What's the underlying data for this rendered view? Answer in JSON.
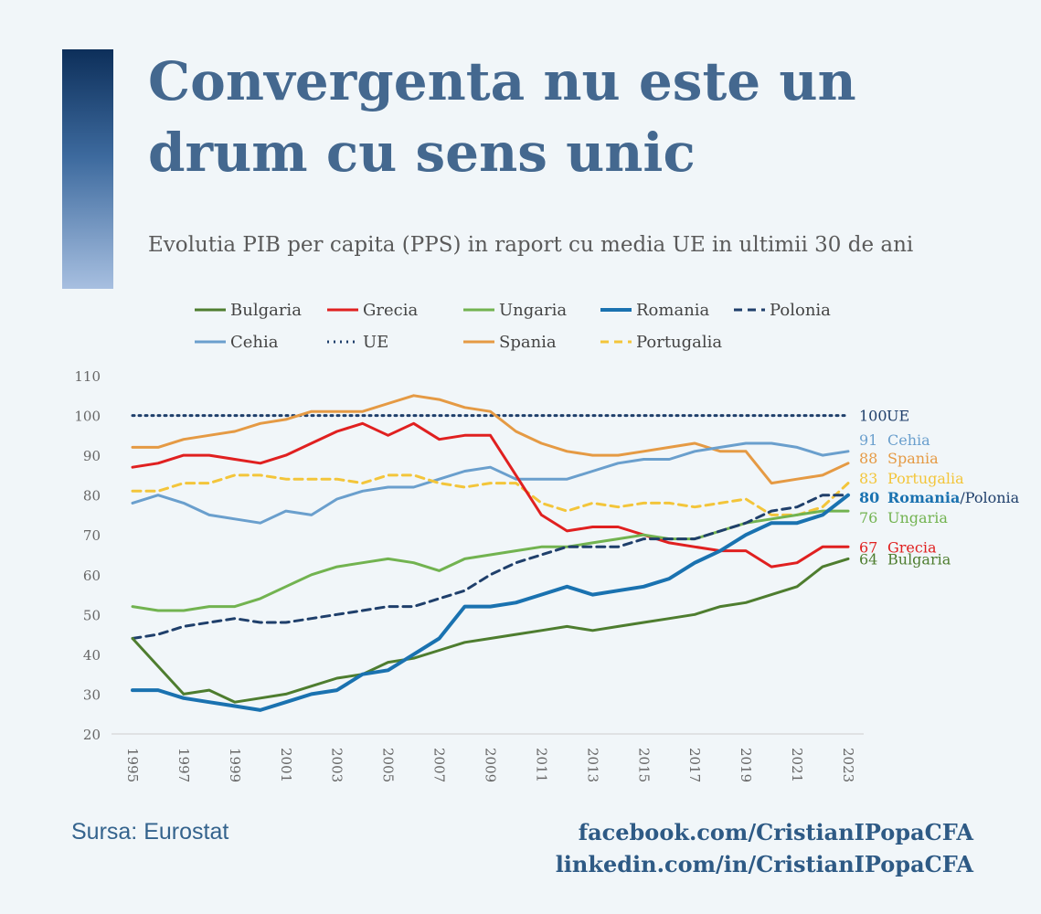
{
  "header": {
    "title": "Convergenta nu este un drum cu sens unic",
    "subtitle": "Evolutia PIB per capita (PPS) in raport cu media UE in ultimii 30 de ani"
  },
  "footer": {
    "source": "Sursa: Eurostat",
    "facebook": "facebook.com/CristianIPopaCFA",
    "linkedin": "linkedin.com/in/CristianIPopaCFA"
  },
  "chart_data": {
    "type": "line",
    "title": "",
    "xlabel": "",
    "ylabel": "",
    "ylim": [
      20,
      110
    ],
    "yticks": [
      20,
      30,
      40,
      50,
      60,
      70,
      80,
      90,
      100,
      110
    ],
    "x": [
      1995,
      1996,
      1997,
      1998,
      1999,
      2000,
      2001,
      2002,
      2003,
      2004,
      2005,
      2006,
      2007,
      2008,
      2009,
      2010,
      2011,
      2012,
      2013,
      2014,
      2015,
      2016,
      2017,
      2018,
      2019,
      2020,
      2021,
      2022,
      2023
    ],
    "xticks": [
      1995,
      1997,
      1999,
      2001,
      2003,
      2005,
      2007,
      2009,
      2011,
      2013,
      2015,
      2017,
      2019,
      2021,
      2023
    ],
    "legend_position": "top",
    "series": [
      {
        "name": "Bulgaria",
        "color": "#4e7d2f",
        "dash": "solid",
        "width": 3,
        "values": [
          44,
          37,
          30,
          31,
          28,
          29,
          30,
          32,
          34,
          35,
          38,
          39,
          41,
          43,
          44,
          45,
          46,
          47,
          46,
          47,
          48,
          49,
          50,
          52,
          53,
          55,
          57,
          62,
          64
        ]
      },
      {
        "name": "Grecia",
        "color": "#e02020",
        "dash": "solid",
        "width": 3,
        "values": [
          87,
          88,
          90,
          90,
          89,
          88,
          90,
          93,
          96,
          98,
          95,
          98,
          94,
          95,
          95,
          85,
          75,
          71,
          72,
          72,
          70,
          68,
          67,
          66,
          66,
          62,
          63,
          67,
          67
        ]
      },
      {
        "name": "Ungaria",
        "color": "#72b350",
        "dash": "solid",
        "width": 3,
        "values": [
          52,
          51,
          51,
          52,
          52,
          54,
          57,
          60,
          62,
          63,
          64,
          63,
          61,
          64,
          65,
          66,
          67,
          67,
          68,
          69,
          70,
          69,
          69,
          71,
          73,
          74,
          75,
          76,
          76
        ]
      },
      {
        "name": "Romania",
        "color": "#1a72b0",
        "dash": "solid",
        "width": 4,
        "values": [
          31,
          31,
          29,
          28,
          27,
          26,
          28,
          30,
          31,
          35,
          36,
          40,
          44,
          52,
          52,
          53,
          55,
          57,
          55,
          56,
          57,
          59,
          63,
          66,
          70,
          73,
          73,
          75,
          80
        ]
      },
      {
        "name": "Polonia",
        "color": "#1f3f6b",
        "dash": "dashed",
        "width": 3,
        "values": [
          44,
          45,
          47,
          48,
          49,
          48,
          48,
          49,
          50,
          51,
          52,
          52,
          54,
          56,
          60,
          63,
          65,
          67,
          67,
          67,
          69,
          69,
          69,
          71,
          73,
          76,
          77,
          80,
          80
        ]
      },
      {
        "name": "Cehia",
        "color": "#6a9fcd",
        "dash": "solid",
        "width": 3,
        "values": [
          78,
          80,
          78,
          75,
          74,
          73,
          76,
          75,
          79,
          81,
          82,
          82,
          84,
          86,
          87,
          84,
          84,
          84,
          86,
          88,
          89,
          89,
          91,
          92,
          93,
          93,
          92,
          90,
          91
        ]
      },
      {
        "name": "UE",
        "color": "#1f3f6b",
        "dash": "dotted",
        "width": 3,
        "values": [
          100,
          100,
          100,
          100,
          100,
          100,
          100,
          100,
          100,
          100,
          100,
          100,
          100,
          100,
          100,
          100,
          100,
          100,
          100,
          100,
          100,
          100,
          100,
          100,
          100,
          100,
          100,
          100,
          100
        ]
      },
      {
        "name": "Spania",
        "color": "#e59a44",
        "dash": "solid",
        "width": 3,
        "values": [
          92,
          92,
          94,
          95,
          96,
          98,
          99,
          101,
          101,
          101,
          103,
          105,
          104,
          102,
          101,
          96,
          93,
          91,
          90,
          90,
          91,
          92,
          93,
          91,
          91,
          83,
          84,
          85,
          88
        ]
      },
      {
        "name": "Portugalia",
        "color": "#f3c53a",
        "dash": "dashed",
        "width": 3,
        "values": [
          81,
          81,
          83,
          83,
          85,
          85,
          84,
          84,
          84,
          83,
          85,
          85,
          83,
          82,
          83,
          83,
          78,
          76,
          78,
          77,
          78,
          78,
          77,
          78,
          79,
          75,
          75,
          77,
          83
        ]
      }
    ],
    "end_labels": [
      {
        "value": "100",
        "name": "UE",
        "color": "#1f3f6b",
        "y": 100
      },
      {
        "value": "91",
        "name": "Cehia",
        "color": "#6a9fcd",
        "y": 91
      },
      {
        "value": "88",
        "name": "Spania",
        "color": "#e59a44",
        "y": 88
      },
      {
        "value": "83",
        "name": "Portugalia",
        "color": "#f3c53a",
        "y": 83
      },
      {
        "value": "80",
        "name": "Romania",
        "name2": "/Polonia",
        "color": "#1a72b0",
        "color2": "#1f3f6b",
        "y": 80,
        "bold": true
      },
      {
        "value": "76",
        "name": "Ungaria",
        "color": "#72b350",
        "y": 76
      },
      {
        "value": "67",
        "name": "Grecia",
        "color": "#e02020",
        "y": 67
      },
      {
        "value": "64",
        "name": "Bulgaria",
        "color": "#4e7d2f",
        "y": 64
      }
    ]
  }
}
